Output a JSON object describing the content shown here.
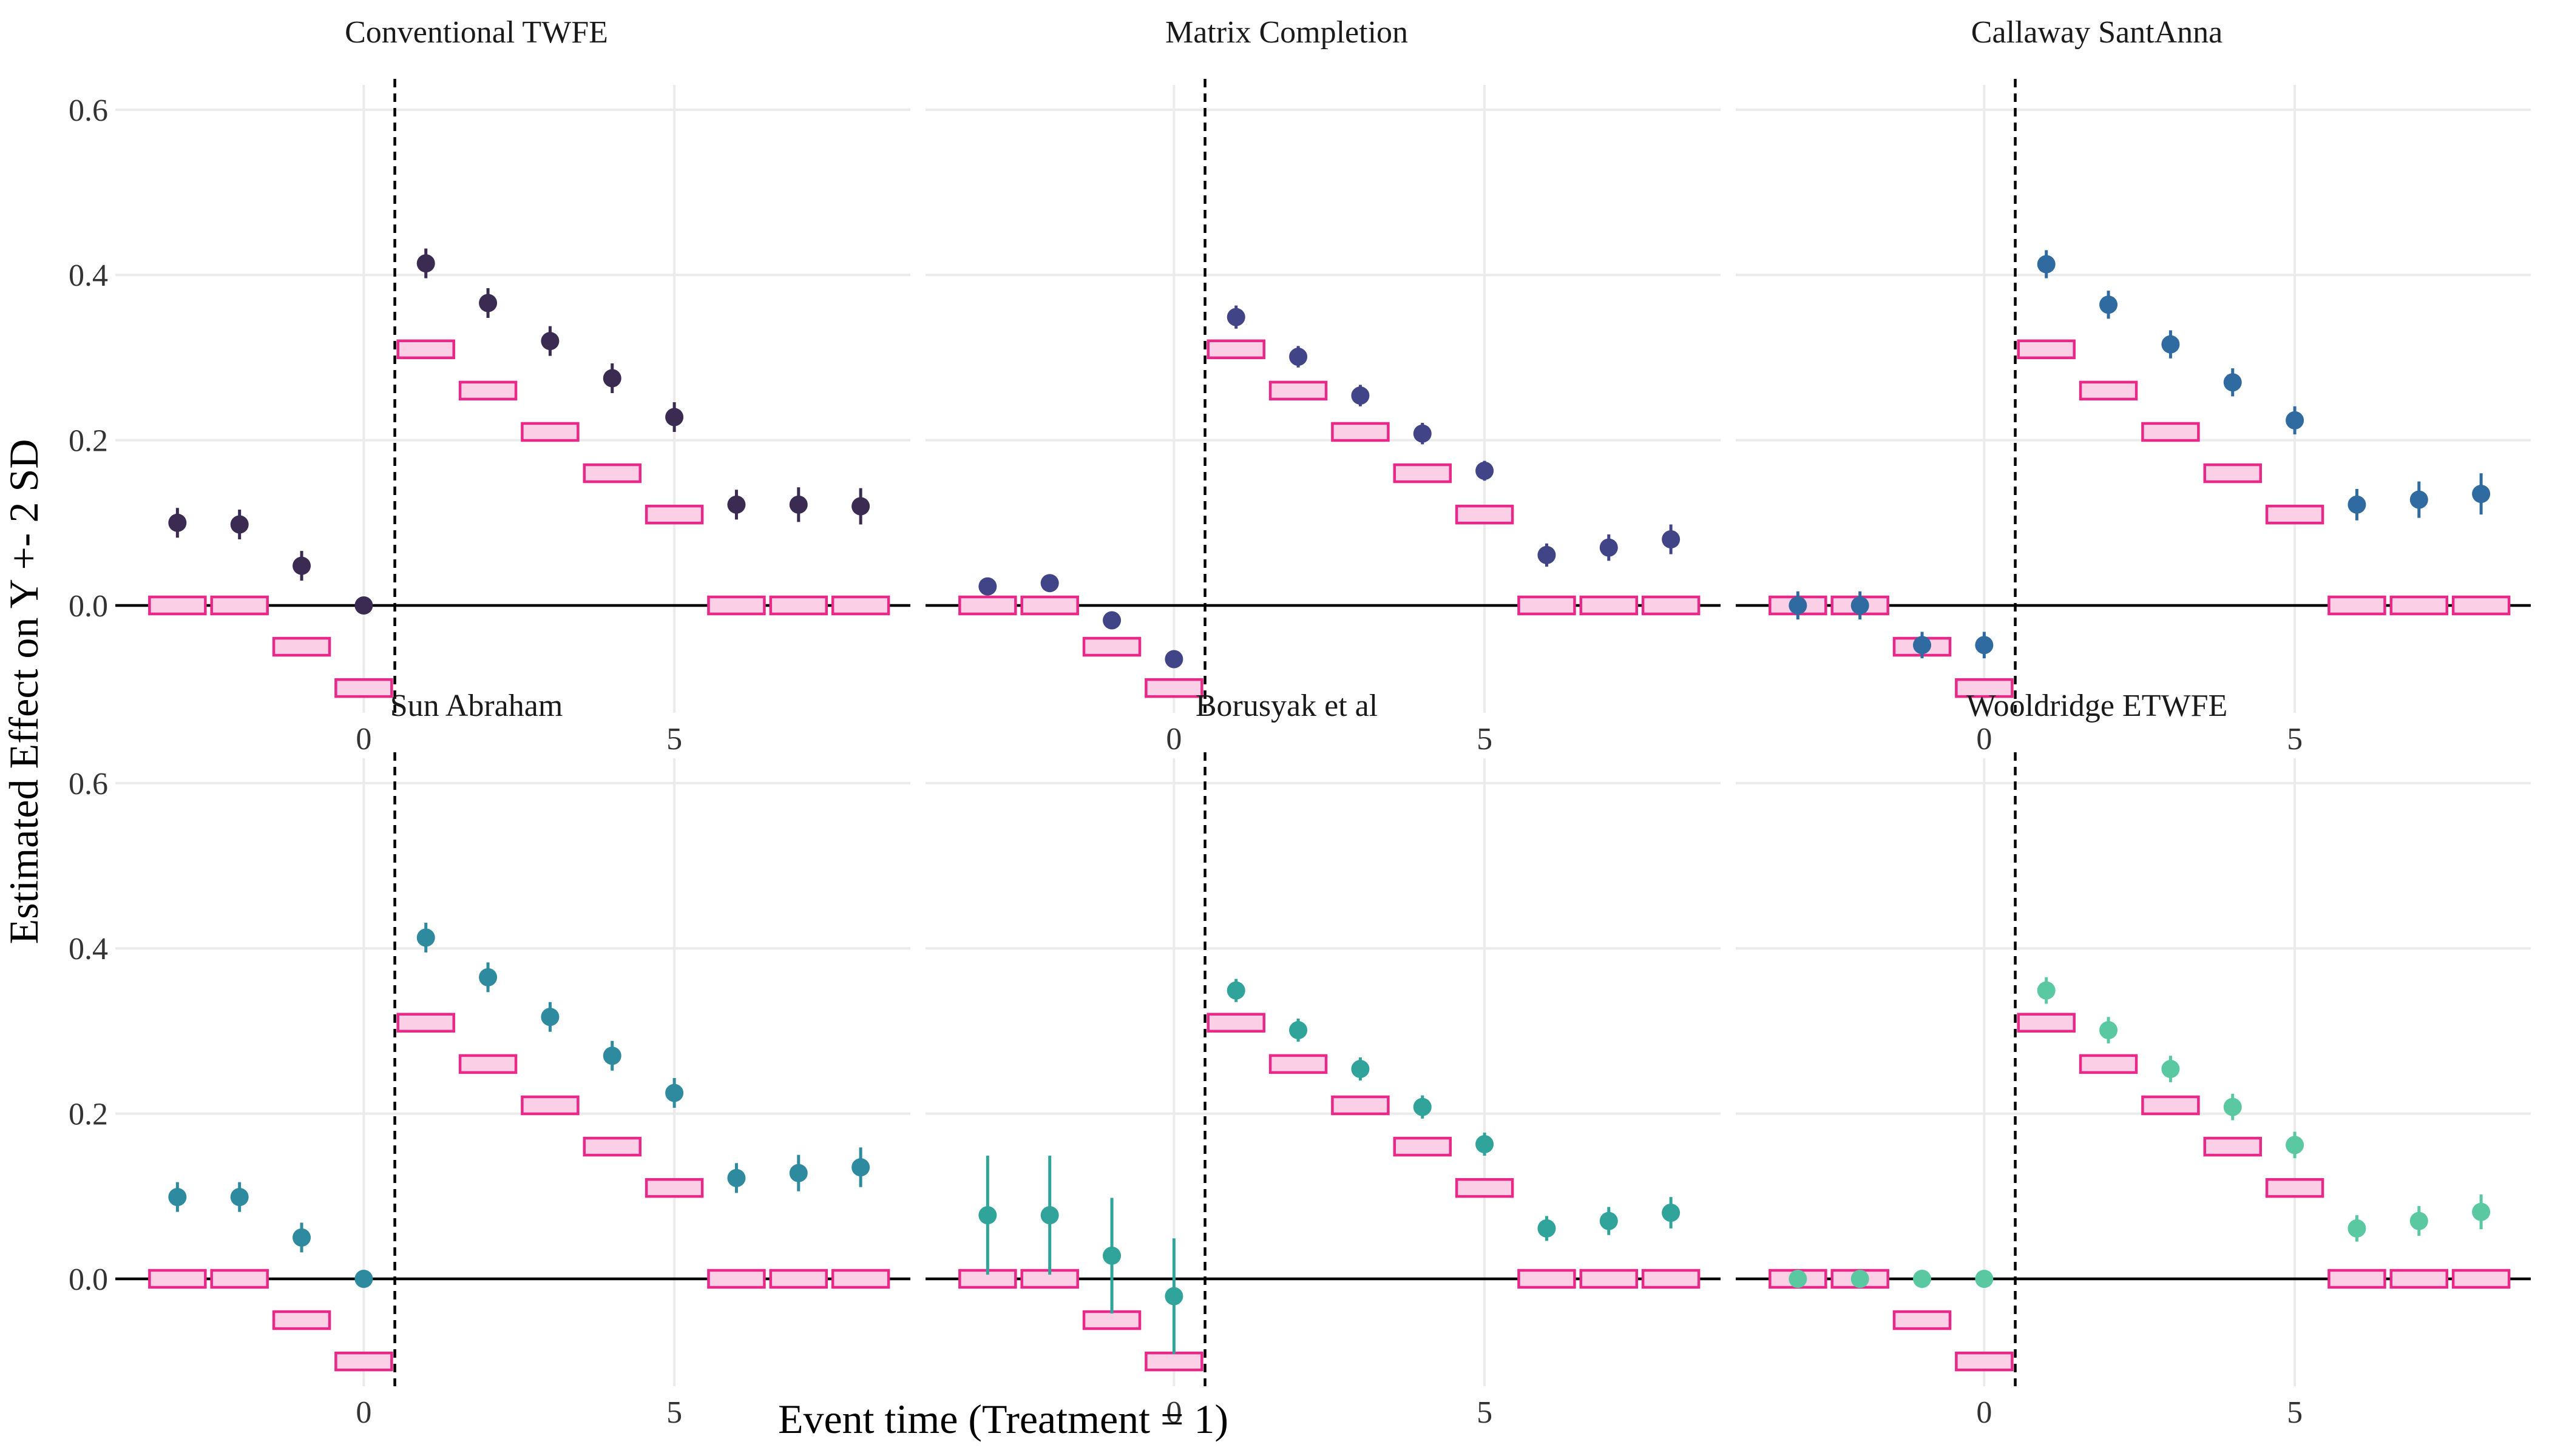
{
  "figure": {
    "xlabel": "Event time (Treatment = 1)",
    "ylabel": "Estimated Effect on Y +- 2 SD"
  },
  "chart_data": {
    "type": "scatter",
    "layout": "facet-grid-2x3",
    "xlim": [
      -4.0,
      8.8
    ],
    "ylim": [
      -0.13,
      0.63
    ],
    "x_ticks": [
      0,
      5
    ],
    "y_ticks": [
      0.0,
      0.2,
      0.4,
      0.6
    ],
    "y_tick_labels": [
      "0.0",
      "0.2",
      "0.4",
      "0.6"
    ],
    "treatment_line_x": 0.5,
    "true_effect_color": "#e7298a",
    "true_effect_fill": "#fbd0e6",
    "true_effects": {
      "x": [
        -3,
        -2,
        -1,
        0,
        1,
        2,
        3,
        4,
        5,
        6,
        7,
        8
      ],
      "y": [
        0,
        0,
        -0.05,
        -0.1,
        0.31,
        0.26,
        0.21,
        0.16,
        0.11,
        0,
        0,
        0
      ]
    },
    "panels": [
      {
        "title": "Conventional TWFE",
        "color": "#3b2a52",
        "estimates": [
          {
            "x": -3,
            "y": 0.1,
            "lo": 0.082,
            "hi": 0.118
          },
          {
            "x": -2,
            "y": 0.098,
            "lo": 0.08,
            "hi": 0.116
          },
          {
            "x": -1,
            "y": 0.048,
            "lo": 0.03,
            "hi": 0.066
          },
          {
            "x": 0,
            "y": 0.0,
            "lo": 0.0,
            "hi": 0.0
          },
          {
            "x": 1,
            "y": 0.414,
            "lo": 0.396,
            "hi": 0.432
          },
          {
            "x": 2,
            "y": 0.366,
            "lo": 0.348,
            "hi": 0.384
          },
          {
            "x": 3,
            "y": 0.32,
            "lo": 0.302,
            "hi": 0.338
          },
          {
            "x": 4,
            "y": 0.275,
            "lo": 0.257,
            "hi": 0.293
          },
          {
            "x": 5,
            "y": 0.228,
            "lo": 0.21,
            "hi": 0.246
          },
          {
            "x": 6,
            "y": 0.122,
            "lo": 0.104,
            "hi": 0.14
          },
          {
            "x": 7,
            "y": 0.122,
            "lo": 0.101,
            "hi": 0.143
          },
          {
            "x": 8,
            "y": 0.12,
            "lo": 0.098,
            "hi": 0.142
          }
        ]
      },
      {
        "title": "Matrix Completion",
        "color": "#414487",
        "estimates": [
          {
            "x": -3,
            "y": 0.023,
            "lo": 0.018,
            "hi": 0.028
          },
          {
            "x": -2,
            "y": 0.027,
            "lo": 0.022,
            "hi": 0.032
          },
          {
            "x": -1,
            "y": -0.018,
            "lo": -0.023,
            "hi": -0.013
          },
          {
            "x": 0,
            "y": -0.065,
            "lo": -0.07,
            "hi": -0.06
          },
          {
            "x": 1,
            "y": 0.349,
            "lo": 0.335,
            "hi": 0.363
          },
          {
            "x": 2,
            "y": 0.301,
            "lo": 0.288,
            "hi": 0.314
          },
          {
            "x": 3,
            "y": 0.254,
            "lo": 0.241,
            "hi": 0.267
          },
          {
            "x": 4,
            "y": 0.208,
            "lo": 0.195,
            "hi": 0.221
          },
          {
            "x": 5,
            "y": 0.163,
            "lo": 0.151,
            "hi": 0.175
          },
          {
            "x": 6,
            "y": 0.061,
            "lo": 0.047,
            "hi": 0.075
          },
          {
            "x": 7,
            "y": 0.07,
            "lo": 0.054,
            "hi": 0.086
          },
          {
            "x": 8,
            "y": 0.08,
            "lo": 0.062,
            "hi": 0.098
          }
        ]
      },
      {
        "title": "Callaway SantAnna",
        "color": "#2f6aa0",
        "estimates": [
          {
            "x": -3,
            "y": 0.0,
            "lo": -0.017,
            "hi": 0.017
          },
          {
            "x": -2,
            "y": 0.0,
            "lo": -0.017,
            "hi": 0.017
          },
          {
            "x": -1,
            "y": -0.048,
            "lo": -0.064,
            "hi": -0.032
          },
          {
            "x": 0,
            "y": -0.048,
            "lo": -0.064,
            "hi": -0.032
          },
          {
            "x": 1,
            "y": 0.413,
            "lo": 0.396,
            "hi": 0.43
          },
          {
            "x": 2,
            "y": 0.364,
            "lo": 0.347,
            "hi": 0.381
          },
          {
            "x": 3,
            "y": 0.316,
            "lo": 0.299,
            "hi": 0.333
          },
          {
            "x": 4,
            "y": 0.27,
            "lo": 0.253,
            "hi": 0.287
          },
          {
            "x": 5,
            "y": 0.224,
            "lo": 0.207,
            "hi": 0.241
          },
          {
            "x": 6,
            "y": 0.122,
            "lo": 0.103,
            "hi": 0.141
          },
          {
            "x": 7,
            "y": 0.128,
            "lo": 0.106,
            "hi": 0.15
          },
          {
            "x": 8,
            "y": 0.135,
            "lo": 0.11,
            "hi": 0.16
          }
        ]
      },
      {
        "title": "Sun Abraham",
        "color": "#2e8a9e",
        "estimates": [
          {
            "x": -3,
            "y": 0.099,
            "lo": 0.081,
            "hi": 0.117
          },
          {
            "x": -2,
            "y": 0.099,
            "lo": 0.081,
            "hi": 0.117
          },
          {
            "x": -1,
            "y": 0.05,
            "lo": 0.032,
            "hi": 0.068
          },
          {
            "x": 0,
            "y": 0.0,
            "lo": 0.0,
            "hi": 0.0
          },
          {
            "x": 1,
            "y": 0.413,
            "lo": 0.395,
            "hi": 0.431
          },
          {
            "x": 2,
            "y": 0.365,
            "lo": 0.347,
            "hi": 0.383
          },
          {
            "x": 3,
            "y": 0.317,
            "lo": 0.299,
            "hi": 0.335
          },
          {
            "x": 4,
            "y": 0.27,
            "lo": 0.252,
            "hi": 0.288
          },
          {
            "x": 5,
            "y": 0.225,
            "lo": 0.207,
            "hi": 0.243
          },
          {
            "x": 6,
            "y": 0.122,
            "lo": 0.104,
            "hi": 0.14
          },
          {
            "x": 7,
            "y": 0.128,
            "lo": 0.106,
            "hi": 0.15
          },
          {
            "x": 8,
            "y": 0.135,
            "lo": 0.111,
            "hi": 0.159
          }
        ]
      },
      {
        "title": "Borusyak et al",
        "color": "#30a49a",
        "estimates": [
          {
            "x": -3,
            "y": 0.077,
            "lo": 0.005,
            "hi": 0.149
          },
          {
            "x": -2,
            "y": 0.077,
            "lo": 0.005,
            "hi": 0.149
          },
          {
            "x": -1,
            "y": 0.028,
            "lo": -0.042,
            "hi": 0.098
          },
          {
            "x": 0,
            "y": -0.021,
            "lo": -0.091,
            "hi": 0.049
          },
          {
            "x": 1,
            "y": 0.349,
            "lo": 0.335,
            "hi": 0.363
          },
          {
            "x": 2,
            "y": 0.301,
            "lo": 0.287,
            "hi": 0.315
          },
          {
            "x": 3,
            "y": 0.254,
            "lo": 0.24,
            "hi": 0.268
          },
          {
            "x": 4,
            "y": 0.208,
            "lo": 0.194,
            "hi": 0.222
          },
          {
            "x": 5,
            "y": 0.163,
            "lo": 0.149,
            "hi": 0.177
          },
          {
            "x": 6,
            "y": 0.061,
            "lo": 0.046,
            "hi": 0.076
          },
          {
            "x": 7,
            "y": 0.07,
            "lo": 0.053,
            "hi": 0.087
          },
          {
            "x": 8,
            "y": 0.08,
            "lo": 0.061,
            "hi": 0.099
          }
        ]
      },
      {
        "title": "Wooldridge ETWFE",
        "color": "#5ac8a0",
        "estimates": [
          {
            "x": -3,
            "y": 0.0,
            "lo": 0.0,
            "hi": 0.0
          },
          {
            "x": -2,
            "y": 0.0,
            "lo": 0.0,
            "hi": 0.0
          },
          {
            "x": -1,
            "y": 0.0,
            "lo": 0.0,
            "hi": 0.0
          },
          {
            "x": 0,
            "y": 0.0,
            "lo": 0.0,
            "hi": 0.0
          },
          {
            "x": 1,
            "y": 0.349,
            "lo": 0.333,
            "hi": 0.365
          },
          {
            "x": 2,
            "y": 0.301,
            "lo": 0.285,
            "hi": 0.317
          },
          {
            "x": 3,
            "y": 0.254,
            "lo": 0.238,
            "hi": 0.27
          },
          {
            "x": 4,
            "y": 0.208,
            "lo": 0.192,
            "hi": 0.224
          },
          {
            "x": 5,
            "y": 0.162,
            "lo": 0.146,
            "hi": 0.178
          },
          {
            "x": 6,
            "y": 0.061,
            "lo": 0.045,
            "hi": 0.077
          },
          {
            "x": 7,
            "y": 0.07,
            "lo": 0.052,
            "hi": 0.088
          },
          {
            "x": 8,
            "y": 0.081,
            "lo": 0.06,
            "hi": 0.102
          }
        ]
      }
    ]
  }
}
